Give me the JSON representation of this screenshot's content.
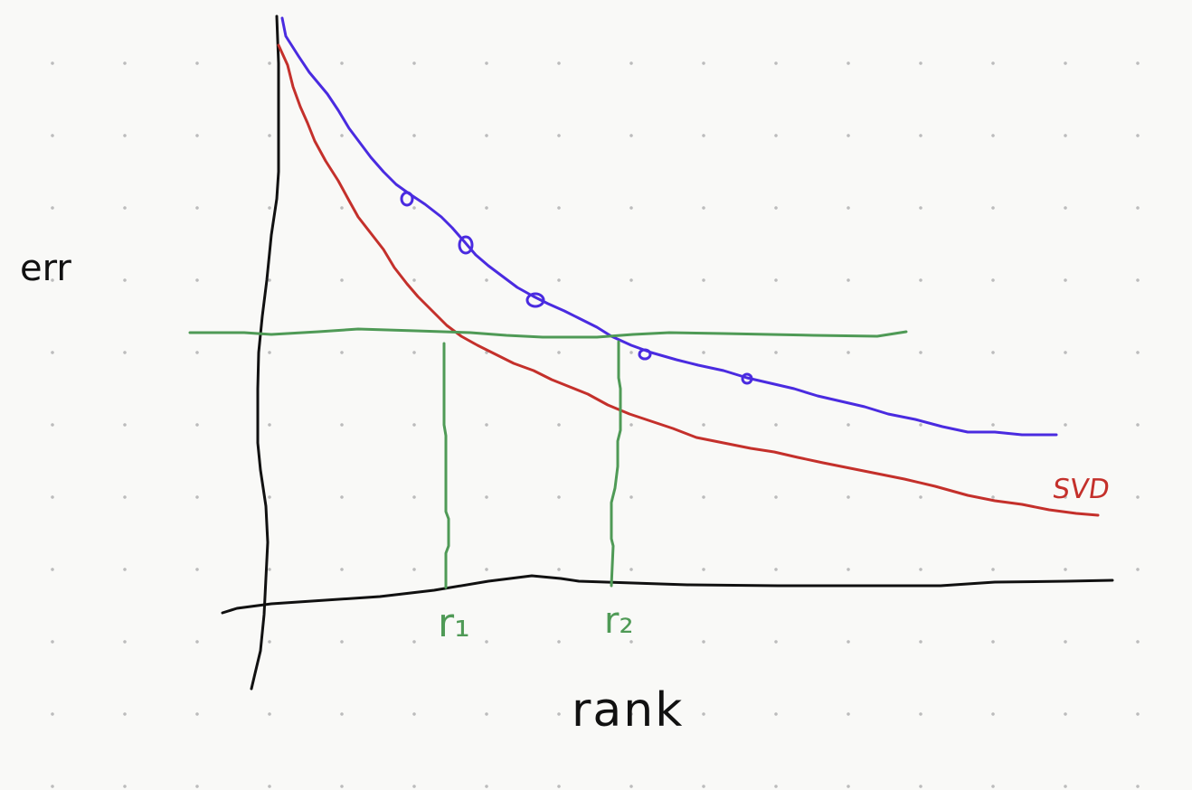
{
  "labels": {
    "y_axis": "err",
    "x_axis": "rank",
    "r1": "r₁",
    "r2": "r₂",
    "svd": "SVD"
  },
  "colors": {
    "axes": "#111111",
    "svd_curve": "#c4302b",
    "other_curve": "#4a2be0",
    "threshold": "#4f9a56",
    "background": "#f9f9f7"
  },
  "icons": {
    "markers": "small-circle-markers"
  }
}
